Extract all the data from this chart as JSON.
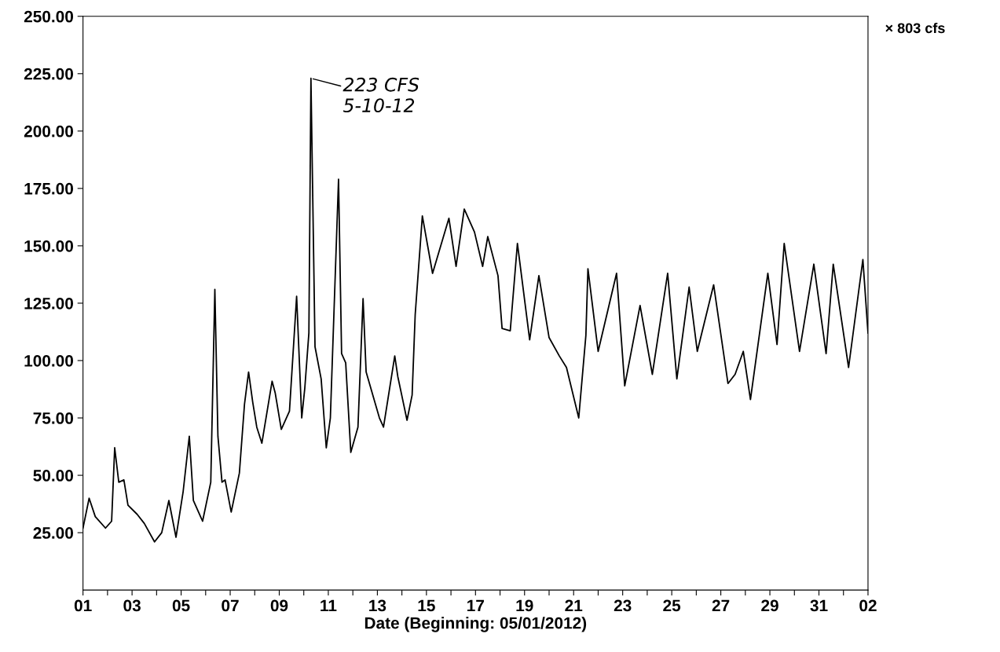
{
  "chart_data": {
    "type": "line",
    "xlabel": "Date (Beginning: 05/01/2012)",
    "x": [
      "2012-05-01T00:00",
      "2012-05-01T06:00",
      "2012-05-01T12:00",
      "2012-05-01T22:00",
      "2012-05-02T04:00",
      "2012-05-02T07:00",
      "2012-05-02T11:00",
      "2012-05-02T16:00",
      "2012-05-02T20:00",
      "2012-05-03T05:00",
      "2012-05-03T12:00",
      "2012-05-03T22:00",
      "2012-05-04T05:00",
      "2012-05-04T12:00",
      "2012-05-04T19:00",
      "2012-05-05T02:00",
      "2012-05-05T08:00",
      "2012-05-05T12:00",
      "2012-05-05T21:00",
      "2012-05-06T05:00",
      "2012-05-06T09:00",
      "2012-05-06T12:00",
      "2012-05-06T16:00",
      "2012-05-06T19:00",
      "2012-05-07T01:00",
      "2012-05-07T09:00",
      "2012-05-07T14:00",
      "2012-05-07T18:00",
      "2012-05-07T22:00",
      "2012-05-08T02:00",
      "2012-05-08T07:00",
      "2012-05-08T17:00",
      "2012-05-08T20:00",
      "2012-05-09T02:00",
      "2012-05-09T10:00",
      "2012-05-09T17:00",
      "2012-05-09T22:00",
      "2012-05-10T01:00",
      "2012-05-10T05:00",
      "2012-05-10T07:00",
      "2012-05-10T11:00",
      "2012-05-10T17:00",
      "2012-05-10T22:00",
      "2012-05-11T02:00",
      "2012-05-11T10:00",
      "2012-05-11T13:00",
      "2012-05-11T17:00",
      "2012-05-11T22:00",
      "2012-05-12T05:00",
      "2012-05-12T10:00",
      "2012-05-12T13:00",
      "2012-05-13T02:00",
      "2012-05-13T06:00",
      "2012-05-13T17:00",
      "2012-05-13T20:00",
      "2012-05-14T05:00",
      "2012-05-14T10:00",
      "2012-05-14T13:00",
      "2012-05-14T20:00",
      "2012-05-15T06:00",
      "2012-05-15T22:00",
      "2012-05-16T05:00",
      "2012-05-16T13:00",
      "2012-05-16T23:00",
      "2012-05-17T07:00",
      "2012-05-17T12:00",
      "2012-05-17T22:00",
      "2012-05-18T02:00",
      "2012-05-18T10:00",
      "2012-05-18T17:00",
      "2012-05-19T05:00",
      "2012-05-19T14:00",
      "2012-05-20T00:00",
      "2012-05-20T10:00",
      "2012-05-20T17:00",
      "2012-05-21T05:00",
      "2012-05-21T12:00",
      "2012-05-21T14:00",
      "2012-05-22T00:00",
      "2012-05-22T18:00",
      "2012-05-23T02:00",
      "2012-05-23T17:00",
      "2012-05-24T05:00",
      "2012-05-24T20:00",
      "2012-05-25T05:00",
      "2012-05-25T17:00",
      "2012-05-26T01:00",
      "2012-05-26T17:00",
      "2012-05-27T07:00",
      "2012-05-27T14:00",
      "2012-05-27T22:00",
      "2012-05-28T05:00",
      "2012-05-28T22:00",
      "2012-05-29T07:00",
      "2012-05-29T14:00",
      "2012-05-30T05:00",
      "2012-05-30T19:00",
      "2012-05-31T07:00",
      "2012-05-31T14:00",
      "2012-06-01T05:00",
      "2012-06-01T19:00",
      "2012-06-02T00:00"
    ],
    "series": [
      {
        "color": "#000000",
        "values": [
          27,
          40,
          32,
          27,
          30,
          62,
          47,
          48,
          37,
          33,
          29,
          21,
          25,
          39,
          23,
          43,
          67,
          39,
          30,
          47,
          131,
          67,
          47,
          48,
          34,
          51,
          81,
          95,
          82,
          71,
          64,
          91,
          86,
          70,
          78,
          128,
          75,
          88,
          112,
          223,
          106,
          92,
          62,
          75,
          179,
          103,
          99,
          60,
          71,
          127,
          95,
          75,
          71,
          102,
          93,
          74,
          85,
          120,
          163,
          138,
          162,
          141,
          166,
          156,
          141,
          154,
          137,
          114,
          113,
          151,
          109,
          137,
          110,
          102,
          97,
          75,
          111,
          140,
          104,
          138,
          89,
          124,
          94,
          138,
          92,
          132,
          104,
          133,
          90,
          94,
          104,
          83,
          138,
          107,
          151,
          104,
          142,
          103,
          142,
          97,
          144,
          112
        ]
      }
    ],
    "xlim": [
      "2012-05-01",
      "2012-06-02"
    ],
    "xticks": [
      {
        "value": "2012-05-01",
        "label": "01"
      },
      {
        "value": "2012-05-02",
        "label": null
      },
      {
        "value": "2012-05-03",
        "label": "03"
      },
      {
        "value": "2012-05-04",
        "label": null
      },
      {
        "value": "2012-05-05",
        "label": "05"
      },
      {
        "value": "2012-05-06",
        "label": null
      },
      {
        "value": "2012-05-07",
        "label": "07"
      },
      {
        "value": "2012-05-08",
        "label": null
      },
      {
        "value": "2012-05-09",
        "label": "09"
      },
      {
        "value": "2012-05-10",
        "label": null
      },
      {
        "value": "2012-05-11",
        "label": "11"
      },
      {
        "value": "2012-05-12",
        "label": null
      },
      {
        "value": "2012-05-13",
        "label": "13"
      },
      {
        "value": "2012-05-14",
        "label": null
      },
      {
        "value": "2012-05-15",
        "label": "15"
      },
      {
        "value": "2012-05-16",
        "label": null
      },
      {
        "value": "2012-05-17",
        "label": "17"
      },
      {
        "value": "2012-05-18",
        "label": null
      },
      {
        "value": "2012-05-19",
        "label": "19"
      },
      {
        "value": "2012-05-20",
        "label": null
      },
      {
        "value": "2012-05-21",
        "label": "21"
      },
      {
        "value": "2012-05-22",
        "label": null
      },
      {
        "value": "2012-05-23",
        "label": "23"
      },
      {
        "value": "2012-05-24",
        "label": null
      },
      {
        "value": "2012-05-25",
        "label": "25"
      },
      {
        "value": "2012-05-26",
        "label": null
      },
      {
        "value": "2012-05-27",
        "label": "27"
      },
      {
        "value": "2012-05-28",
        "label": null
      },
      {
        "value": "2012-05-29",
        "label": "29"
      },
      {
        "value": "2012-05-30",
        "label": null
      },
      {
        "value": "2012-05-31",
        "label": "31"
      },
      {
        "value": "2012-06-01",
        "label": null
      },
      {
        "value": "2012-06-02",
        "label": "02"
      }
    ],
    "ylim": [
      0,
      250
    ],
    "yticks": [
      {
        "value": 25,
        "label": "25.00"
      },
      {
        "value": 50,
        "label": "50.00"
      },
      {
        "value": 75,
        "label": "75.00"
      },
      {
        "value": 100,
        "label": "100.00"
      },
      {
        "value": 125,
        "label": "125.00"
      },
      {
        "value": 150,
        "label": "150.00"
      },
      {
        "value": 175,
        "label": "175.00"
      },
      {
        "value": 200,
        "label": "200.00"
      },
      {
        "value": 225,
        "label": "225.00"
      },
      {
        "value": 250,
        "label": "250.00"
      }
    ],
    "annotations": [
      {
        "text": "223 CFS\n5-10-12",
        "x": "2012-05-10T07:00",
        "y": 223
      },
      "× 803 cfs"
    ],
    "grid": false,
    "marker": "none",
    "line_style": "solid"
  }
}
